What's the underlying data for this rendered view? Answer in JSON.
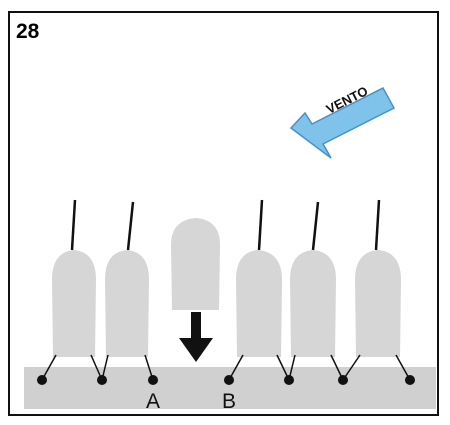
{
  "figure": {
    "number": "28"
  },
  "wind": {
    "label": "VENTO",
    "arrow_color": "#7fc3ea",
    "arrow_outline": "#4a90c8"
  },
  "points": {
    "a_label": "A",
    "b_label": "B"
  },
  "colors": {
    "boat": "#d6d6d6",
    "dock": "#d0d0d0",
    "line": "#111111"
  }
}
